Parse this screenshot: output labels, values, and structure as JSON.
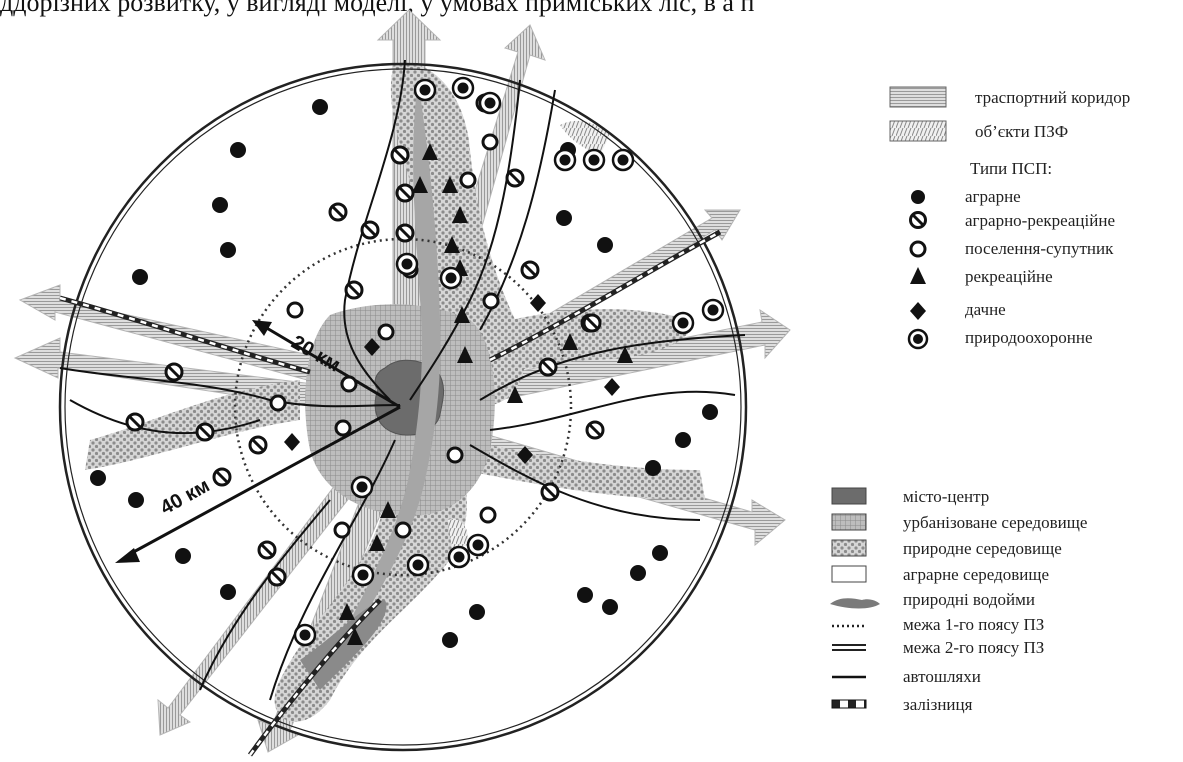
{
  "top_text": "ддорізних розвитку, у вигляді моделі, у умовах приміських ліс, в а п",
  "distances": {
    "inner": "20 км",
    "outer": "40 км"
  },
  "legend_top": {
    "transport_corridor": "траспортний коридор",
    "pzf_objects": "об’єкти ПЗФ",
    "psp_title": "Типи ПСП:",
    "types": [
      "аграрне",
      "аграрно-рекреаційне",
      "поселення-супутник",
      "рекреаційне",
      "дачне",
      "природоохоронне"
    ]
  },
  "legend_bottom": [
    "місто-центр",
    "урбанізоване середовище",
    "природне середовище",
    "аграрне середовище",
    "природні водойми",
    "межа 1-го поясу ПЗ",
    "межа 2-го поясу ПЗ",
    "автошляхи",
    "залізниця"
  ]
}
